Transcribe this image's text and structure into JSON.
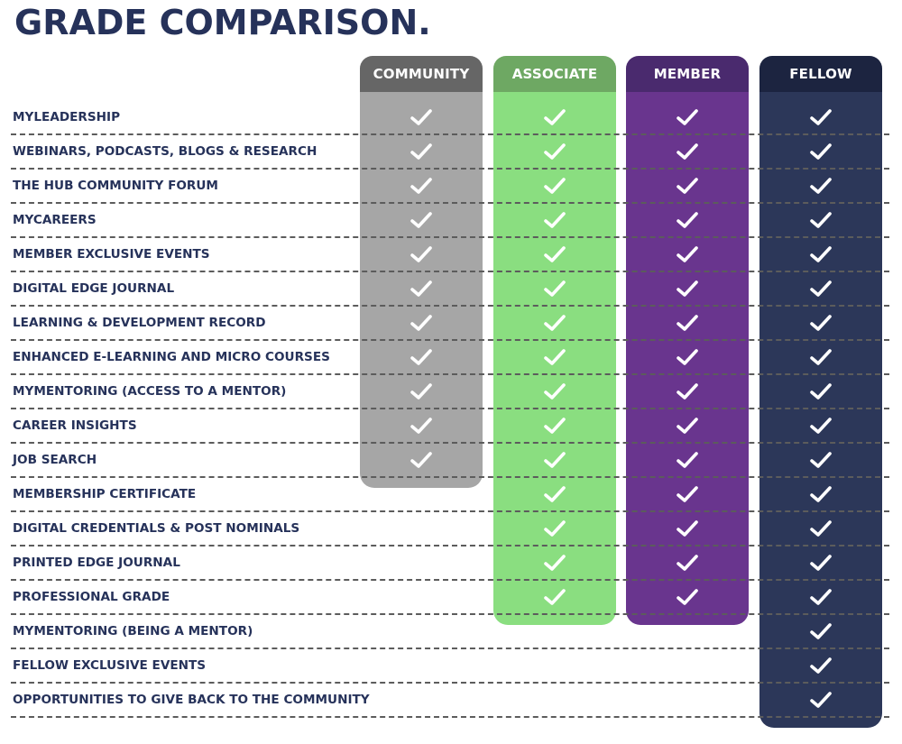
{
  "title": "GRADE COMPARISON.",
  "columns": [
    {
      "label": "COMMUNITY",
      "head_color": "#666666",
      "body_color": "#a6a6a6",
      "rows": 11
    },
    {
      "label": "ASSOCIATE",
      "head_color": "#6ea863",
      "body_color": "#8ade80",
      "rows": 15
    },
    {
      "label": "MEMBER",
      "head_color": "#4a2a6e",
      "body_color": "#69358e",
      "rows": 15
    },
    {
      "label": "FELLOW",
      "head_color": "#1c2440",
      "body_color": "#2c3759",
      "rows": 18
    }
  ],
  "check_icon": "checkmark-icon",
  "rows": [
    "MYLEADERSHIP",
    "WEBINARS, PODCASTS, BLOGS & RESEARCH",
    "THE HUB COMMUNITY FORUM",
    "MYCAREERS",
    "MEMBER EXCLUSIVE EVENTS",
    "DIGITAL EDGE JOURNAL",
    "LEARNING & DEVELOPMENT RECORD",
    "ENHANCED E-LEARNING AND MICRO COURSES",
    "MYMENTORING (ACCESS TO A MENTOR)",
    "CAREER INSIGHTS",
    "JOB SEARCH",
    "MEMBERSHIP CERTIFICATE",
    "DIGITAL CREDENTIALS & POST NOMINALS",
    "PRINTED EDGE JOURNAL",
    "PROFESSIONAL GRADE",
    "MYMENTORING (BEING A MENTOR)",
    "FELLOW EXCLUSIVE EVENTS",
    "OPPORTUNITIES TO GIVE BACK TO THE COMMUNITY"
  ]
}
